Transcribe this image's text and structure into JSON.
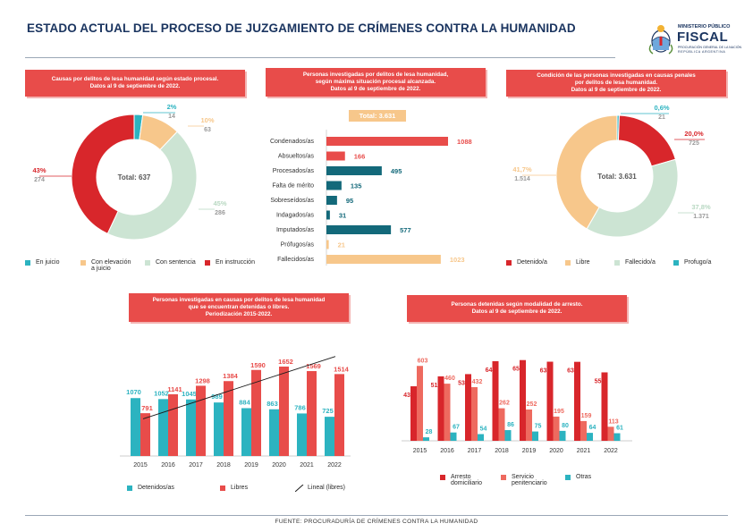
{
  "header": {
    "title": "ESTADO ACTUAL DEL PROCESO DE JUZGAMIENTO DE CRÍMENES CONTRA LA HUMANIDAD",
    "logo": {
      "line1": "MINISTERIO PÚBLICO",
      "line2": "FISCAL",
      "line3": "PROCURACIÓN GENERAL DE LA NACIÓN",
      "line4": "REPÚBLICA ARGENTINA",
      "icon": "argentine-coat-of-arms-icon"
    }
  },
  "footer": {
    "source": "FUENTE: PROCURADURÍA DE CRÍMENES CONTRA LA HUMANIDAD"
  },
  "colors": {
    "red": "#e84c4a",
    "dark_red": "#d8262b",
    "salmon": "#ee6a5f",
    "orange": "#f7c78b",
    "mint": "#cce4d3",
    "teal": "#2cb3c0",
    "dark_teal": "#13697a",
    "navy": "#1b3560"
  },
  "chart_data": [
    {
      "id": "estado_procesal",
      "type": "pie",
      "title_lines": [
        "Causas por delitos de lesa humanidad según estado procesal.",
        "Datos al 9 de septiembre de 2022."
      ],
      "center_label": "Total: 637",
      "slices": [
        {
          "name": "En juicio",
          "value": 14,
          "pct": "2%",
          "color": "#2cb3c0"
        },
        {
          "name": "Con elevación a juicio",
          "value": 63,
          "pct": "10%",
          "color": "#f7c78b"
        },
        {
          "name": "Con sentencia",
          "value": 286,
          "pct": "45%",
          "color": "#cce4d3"
        },
        {
          "name": "En instrucción",
          "value": 274,
          "pct": "43%",
          "color": "#d8262b"
        }
      ],
      "legend": [
        {
          "label": "En juicio",
          "color": "#2cb3c0"
        },
        {
          "label": "Con elevación",
          "label2": "a juicio",
          "color": "#f7c78b"
        },
        {
          "label": "Con sentencia",
          "color": "#cce4d3"
        },
        {
          "label": "En instrucción",
          "color": "#d8262b"
        }
      ]
    },
    {
      "id": "situacion_procesal",
      "type": "bar",
      "orientation": "horizontal",
      "title_lines": [
        "Personas investigadas por delitos de lesa humanidad,",
        "según máxima situación procesal alcanzada.",
        "Datos al 9 de septiembre de 2022."
      ],
      "total_label": "Total: 3.631",
      "categories": [
        "Condenados/as",
        "Absueltos/as",
        "Procesados/as",
        "Falta de mérito",
        "Sobreseídos/as",
        "Indagados/as",
        "Imputados/as",
        "Prófugos/as",
        "Fallecidos/as"
      ],
      "values": [
        1088,
        166,
        495,
        135,
        95,
        31,
        577,
        21,
        1023
      ],
      "colors": [
        "#e84c4a",
        "#e84c4a",
        "#13697a",
        "#13697a",
        "#13697a",
        "#13697a",
        "#13697a",
        "#f7c78b",
        "#f7c78b"
      ],
      "xlim": [
        0,
        1200
      ]
    },
    {
      "id": "condicion_personas",
      "type": "pie",
      "title_lines": [
        "Condición de las personas investigadas en causas penales",
        "por delitos de lesa humanidad.",
        "Datos al 9 de septiembre de 2022."
      ],
      "center_label": "Total: 3.631",
      "slices": [
        {
          "name": "Prófugo/a",
          "value": 21,
          "pct": "0,6%",
          "color": "#2cb3c0"
        },
        {
          "name": "Detenido/a",
          "value": 725,
          "pct": "20,0%",
          "color": "#d8262b"
        },
        {
          "name": "Fallecido/a",
          "value": 1371,
          "pct": "37,8%",
          "color": "#cce4d3"
        },
        {
          "name": "Libre",
          "value": 1514,
          "pct": "41,7%",
          "color": "#f7c78b"
        }
      ],
      "legend": [
        {
          "label": "Detenido/a",
          "color": "#d8262b"
        },
        {
          "label": "Libre",
          "color": "#f7c78b"
        },
        {
          "label": "Fallecido/a",
          "color": "#cce4d3"
        },
        {
          "label": "Profugo/a",
          "color": "#2cb3c0"
        }
      ]
    },
    {
      "id": "detenidas_o_libres",
      "type": "bar",
      "title_lines": [
        "Personas investigadas en causas por delitos de lesa humanidad",
        "que se encuentran detenidas o libres.",
        "Periodización 2015-2022."
      ],
      "categories": [
        "2015",
        "2016",
        "2017",
        "2018",
        "2019",
        "2020",
        "2021",
        "2022"
      ],
      "series": [
        {
          "name": "Detenidos/as",
          "color": "#2cb3c0",
          "values": [
            1070,
            1052,
            1045,
            989,
            884,
            863,
            786,
            725
          ],
          "labels": [
            "1070",
            "1052",
            "1045",
            "989",
            "884",
            "863",
            "786",
            "725"
          ]
        },
        {
          "name": "Libres",
          "color": "#e84c4a",
          "values": [
            791,
            1141,
            1298,
            1384,
            1590,
            1652,
            1569,
            1514
          ],
          "labels": [
            "791",
            "1141",
            "1298",
            "1384",
            "1590",
            "1652",
            "1569",
            "1514"
          ]
        }
      ],
      "trendline": {
        "name": "Lineal (libres)",
        "color": "#1a1a1a"
      },
      "ylim": [
        0,
        1900
      ]
    },
    {
      "id": "modalidad_arresto",
      "type": "bar",
      "title_lines": [
        "Personas detenidas según modalidad de arresto.",
        "Datos al 9 de septiembre de 2022."
      ],
      "categories": [
        "2015",
        "2016",
        "2017",
        "2018",
        "2019",
        "2020",
        "2021",
        "2022"
      ],
      "series": [
        {
          "name": "Arresto domiciliario",
          "label": "Arresto",
          "label2": "domiciliario",
          "color": "#d8262b",
          "values": [
            439,
            519,
            537,
            641,
            650,
            637,
            636,
            551
          ]
        },
        {
          "name": "Servicio penitenciario",
          "label": "Servicio",
          "label2": "penitenciario",
          "color": "#ee6a5f",
          "values": [
            603,
            460,
            432,
            262,
            252,
            195,
            159,
            113
          ]
        },
        {
          "name": "Otras",
          "label": "Otras",
          "label2": "",
          "color": "#2cb3c0",
          "values": [
            28,
            67,
            54,
            86,
            75,
            80,
            64,
            61
          ]
        }
      ],
      "ylim": [
        0,
        720
      ]
    }
  ]
}
